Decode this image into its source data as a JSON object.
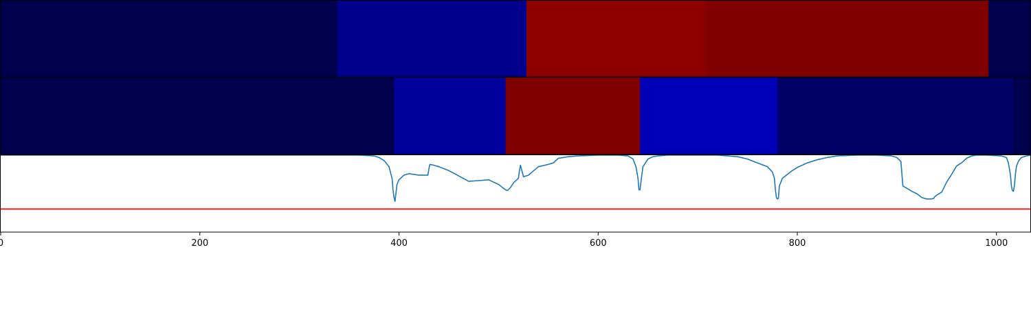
{
  "chart_data": [
    {
      "type": "heatmap",
      "title": "",
      "xlabel": "",
      "ylabel": "",
      "xlim": [
        0,
        1034
      ],
      "segments": [
        {
          "start": 0,
          "end": 338,
          "color": "#00004c"
        },
        {
          "start": 338,
          "end": 528,
          "color": "#00008c"
        },
        {
          "start": 528,
          "end": 707,
          "color": "#8e0000"
        },
        {
          "start": 707,
          "end": 992,
          "color": "#800000"
        },
        {
          "start": 992,
          "end": 1034,
          "color": "#00004c"
        }
      ]
    },
    {
      "type": "heatmap",
      "title": "",
      "xlabel": "",
      "ylabel": "",
      "xlim": [
        0,
        1034
      ],
      "segments": [
        {
          "start": 0,
          "end": 395,
          "color": "#00004c"
        },
        {
          "start": 395,
          "end": 507,
          "color": "#00009c"
        },
        {
          "start": 507,
          "end": 642,
          "color": "#7e0000"
        },
        {
          "start": 642,
          "end": 780,
          "color": "#0000b6"
        },
        {
          "start": 780,
          "end": 1017,
          "color": "#000064"
        },
        {
          "start": 1017,
          "end": 1034,
          "color": "#00004c"
        }
      ]
    },
    {
      "type": "line",
      "title": "",
      "xlabel": "",
      "ylabel": "",
      "xlim": [
        0,
        1034
      ],
      "ylim": [
        0,
        1
      ],
      "grid": false,
      "series": [
        {
          "color": "#1f77b4",
          "x": [
            0,
            360,
            375,
            380,
            385,
            390,
            393,
            394,
            395,
            396,
            398,
            400,
            405,
            410,
            420,
            425,
            429,
            430,
            431,
            435,
            440,
            450,
            460,
            470,
            480,
            490,
            500,
            505,
            507,
            509,
            512,
            515,
            520,
            521,
            522,
            525,
            530,
            540,
            550,
            555,
            560,
            565,
            570,
            580,
            600,
            620,
            630,
            635,
            638,
            640,
            641,
            642,
            643,
            645,
            650,
            655,
            660,
            670,
            690,
            720,
            740,
            750,
            760,
            770,
            775,
            777,
            778,
            779,
            780,
            781,
            782,
            785,
            790,
            795,
            800,
            810,
            820,
            830,
            840,
            860,
            880,
            895,
            900,
            904,
            906,
            910,
            915,
            920,
            925,
            930,
            935,
            937,
            938,
            940,
            945,
            950,
            955,
            960,
            965,
            970,
            975,
            980,
            990,
            1005,
            1010,
            1012,
            1014,
            1015,
            1016,
            1017,
            1018,
            1019,
            1020,
            1022,
            1025,
            1030,
            1034
          ],
          "y": [
            1.0,
            1.0,
            0.99,
            0.97,
            0.93,
            0.85,
            0.7,
            0.55,
            0.45,
            0.4,
            0.62,
            0.68,
            0.74,
            0.76,
            0.74,
            0.74,
            0.74,
            0.82,
            0.88,
            0.87,
            0.85,
            0.8,
            0.73,
            0.66,
            0.67,
            0.68,
            0.62,
            0.57,
            0.55,
            0.54,
            0.58,
            0.64,
            0.7,
            0.8,
            0.87,
            0.72,
            0.74,
            0.85,
            0.88,
            0.9,
            0.96,
            0.97,
            0.98,
            0.99,
            1.0,
            1.0,
            0.99,
            0.95,
            0.85,
            0.7,
            0.55,
            0.55,
            0.65,
            0.85,
            0.95,
            0.98,
            0.99,
            1.0,
            1.0,
            1.0,
            0.98,
            0.95,
            0.9,
            0.85,
            0.78,
            0.7,
            0.55,
            0.45,
            0.43,
            0.44,
            0.6,
            0.7,
            0.75,
            0.8,
            0.84,
            0.9,
            0.94,
            0.97,
            0.99,
            1.0,
            1.0,
            0.99,
            0.97,
            0.92,
            0.6,
            0.57,
            0.53,
            0.5,
            0.45,
            0.43,
            0.43,
            0.44,
            0.46,
            0.48,
            0.52,
            0.65,
            0.75,
            0.86,
            0.9,
            0.96,
            0.99,
            1.0,
            1.0,
            0.99,
            0.97,
            0.9,
            0.75,
            0.6,
            0.54,
            0.53,
            0.6,
            0.75,
            0.85,
            0.92,
            0.97,
            0.99,
            1.0
          ]
        },
        {
          "color": "#ff0000",
          "x": [
            0,
            1034
          ],
          "y": [
            0.3,
            0.3
          ]
        }
      ],
      "xticks": [
        0,
        200,
        400,
        600,
        800,
        1000
      ],
      "xtick_labels": [
        "0",
        "200",
        "400",
        "600",
        "800",
        "1000"
      ]
    }
  ]
}
